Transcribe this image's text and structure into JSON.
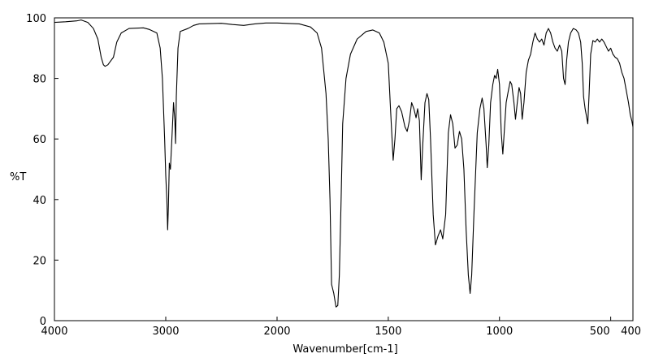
{
  "chart_data": {
    "type": "line",
    "title": "",
    "xlabel": "Wavenumber[cm-1]",
    "ylabel": "%T",
    "x_reversed": true,
    "xlim": [
      4000,
      400
    ],
    "ylim": [
      0,
      100
    ],
    "x_ticks": [
      4000,
      3000,
      2000,
      1500,
      1000,
      500,
      400
    ],
    "x_tick_labels": [
      "4000",
      "3000",
      "2000",
      "1500",
      "1000",
      "500",
      "400"
    ],
    "y_ticks": [
      0,
      20,
      40,
      60,
      80,
      100
    ],
    "y_tick_labels": [
      "0",
      "20",
      "40",
      "60",
      "80",
      "100"
    ],
    "grid": false,
    "series": [
      {
        "color": "#000000",
        "points": [
          [
            4000,
            98.5
          ],
          [
            3900,
            98.7
          ],
          [
            3800,
            99.0
          ],
          [
            3760,
            99.3
          ],
          [
            3700,
            98.5
          ],
          [
            3650,
            96.5
          ],
          [
            3610,
            93.0
          ],
          [
            3580,
            87.0
          ],
          [
            3560,
            84.5
          ],
          [
            3545,
            84.0
          ],
          [
            3520,
            84.5
          ],
          [
            3490,
            86.0
          ],
          [
            3470,
            87.0
          ],
          [
            3440,
            92.0
          ],
          [
            3400,
            95.0
          ],
          [
            3330,
            96.5
          ],
          [
            3200,
            96.7
          ],
          [
            3150,
            96.2
          ],
          [
            3080,
            95.0
          ],
          [
            3050,
            90.0
          ],
          [
            3030,
            80.0
          ],
          [
            3010,
            60.0
          ],
          [
            3000,
            48.0
          ],
          [
            2990,
            40.0
          ],
          [
            2983,
            30.0
          ],
          [
            2976,
            38.0
          ],
          [
            2968,
            52.0
          ],
          [
            2958,
            50.0
          ],
          [
            2945,
            60.0
          ],
          [
            2930,
            72.0
          ],
          [
            2918,
            66.0
          ],
          [
            2912,
            58.5
          ],
          [
            2905,
            74.0
          ],
          [
            2890,
            90.0
          ],
          [
            2870,
            95.5
          ],
          [
            2800,
            96.5
          ],
          [
            2750,
            97.5
          ],
          [
            2700,
            98.0
          ],
          [
            2500,
            98.2
          ],
          [
            2400,
            97.8
          ],
          [
            2300,
            97.5
          ],
          [
            2200,
            98.0
          ],
          [
            2100,
            98.3
          ],
          [
            2000,
            98.3
          ],
          [
            1900,
            98.0
          ],
          [
            1850,
            97.0
          ],
          [
            1820,
            95.0
          ],
          [
            1800,
            90.0
          ],
          [
            1780,
            75.0
          ],
          [
            1770,
            60.0
          ],
          [
            1762,
            40.0
          ],
          [
            1755,
            12.0
          ],
          [
            1745,
            9.0
          ],
          [
            1735,
            4.5
          ],
          [
            1727,
            5.0
          ],
          [
            1720,
            15.0
          ],
          [
            1712,
            40.0
          ],
          [
            1705,
            65.0
          ],
          [
            1690,
            80.0
          ],
          [
            1670,
            88.0
          ],
          [
            1640,
            93.0
          ],
          [
            1600,
            95.5
          ],
          [
            1570,
            96.0
          ],
          [
            1540,
            95.0
          ],
          [
            1520,
            92.0
          ],
          [
            1500,
            85.0
          ],
          [
            1490,
            70.0
          ],
          [
            1478,
            53.0
          ],
          [
            1470,
            60.0
          ],
          [
            1462,
            70.0
          ],
          [
            1452,
            71.0
          ],
          [
            1440,
            69.0
          ],
          [
            1425,
            64.0
          ],
          [
            1415,
            62.5
          ],
          [
            1405,
            66.0
          ],
          [
            1395,
            72.0
          ],
          [
            1385,
            70.0
          ],
          [
            1375,
            67.0
          ],
          [
            1368,
            70.0
          ],
          [
            1360,
            66.0
          ],
          [
            1352,
            46.5
          ],
          [
            1345,
            58.0
          ],
          [
            1335,
            72.0
          ],
          [
            1326,
            75.0
          ],
          [
            1318,
            73.0
          ],
          [
            1310,
            60.0
          ],
          [
            1298,
            35.0
          ],
          [
            1288,
            25.0
          ],
          [
            1276,
            28.0
          ],
          [
            1265,
            30.0
          ],
          [
            1255,
            27.0
          ],
          [
            1242,
            35.0
          ],
          [
            1230,
            62.0
          ],
          [
            1220,
            68.0
          ],
          [
            1210,
            65.0
          ],
          [
            1200,
            57.0
          ],
          [
            1190,
            58.0
          ],
          [
            1180,
            62.5
          ],
          [
            1170,
            60.0
          ],
          [
            1160,
            50.0
          ],
          [
            1150,
            30.0
          ],
          [
            1140,
            15.0
          ],
          [
            1132,
            9.0
          ],
          [
            1125,
            15.0
          ],
          [
            1115,
            35.0
          ],
          [
            1100,
            62.0
          ],
          [
            1088,
            70.0
          ],
          [
            1078,
            73.5
          ],
          [
            1070,
            70.0
          ],
          [
            1060,
            58.0
          ],
          [
            1055,
            50.5
          ],
          [
            1048,
            58.0
          ],
          [
            1040,
            72.0
          ],
          [
            1030,
            78.0
          ],
          [
            1022,
            81.0
          ],
          [
            1015,
            80.0
          ],
          [
            1008,
            83.0
          ],
          [
            1000,
            78.0
          ],
          [
            992,
            62.0
          ],
          [
            985,
            55.0
          ],
          [
            978,
            63.0
          ],
          [
            970,
            72.0
          ],
          [
            960,
            76.0
          ],
          [
            952,
            79.0
          ],
          [
            945,
            78.0
          ],
          [
            935,
            72.0
          ],
          [
            928,
            66.5
          ],
          [
            920,
            72.0
          ],
          [
            912,
            77.0
          ],
          [
            905,
            75.0
          ],
          [
            898,
            66.5
          ],
          [
            890,
            72.0
          ],
          [
            880,
            82.0
          ],
          [
            870,
            86.0
          ],
          [
            860,
            88.0
          ],
          [
            850,
            92.0
          ],
          [
            840,
            95.0
          ],
          [
            830,
            93.0
          ],
          [
            820,
            92.0
          ],
          [
            810,
            93.0
          ],
          [
            800,
            91.0
          ],
          [
            790,
            95.0
          ],
          [
            780,
            96.5
          ],
          [
            770,
            95.0
          ],
          [
            760,
            92.0
          ],
          [
            750,
            90.0
          ],
          [
            740,
            89.0
          ],
          [
            730,
            91.0
          ],
          [
            720,
            89.0
          ],
          [
            712,
            80.0
          ],
          [
            705,
            78.0
          ],
          [
            698,
            86.0
          ],
          [
            690,
            92.0
          ],
          [
            680,
            95.0
          ],
          [
            668,
            96.5
          ],
          [
            655,
            96.0
          ],
          [
            645,
            95.0
          ],
          [
            635,
            92.0
          ],
          [
            628,
            85.0
          ],
          [
            622,
            74.0
          ],
          [
            615,
            70.0
          ],
          [
            610,
            68.0
          ],
          [
            603,
            65.0
          ],
          [
            597,
            75.0
          ],
          [
            590,
            88.0
          ],
          [
            580,
            92.5
          ],
          [
            570,
            92.0
          ],
          [
            560,
            93.0
          ],
          [
            550,
            92.0
          ],
          [
            540,
            93.0
          ],
          [
            530,
            92.0
          ],
          [
            520,
            90.5
          ],
          [
            510,
            89.0
          ],
          [
            500,
            90.0
          ],
          [
            490,
            88.0
          ],
          [
            480,
            87.0
          ],
          [
            470,
            86.5
          ],
          [
            460,
            85.0
          ],
          [
            450,
            82.0
          ],
          [
            440,
            80.0
          ],
          [
            430,
            76.0
          ],
          [
            420,
            72.0
          ],
          [
            412,
            68.0
          ],
          [
            405,
            66.0
          ],
          [
            400,
            64.0
          ]
        ]
      }
    ]
  }
}
